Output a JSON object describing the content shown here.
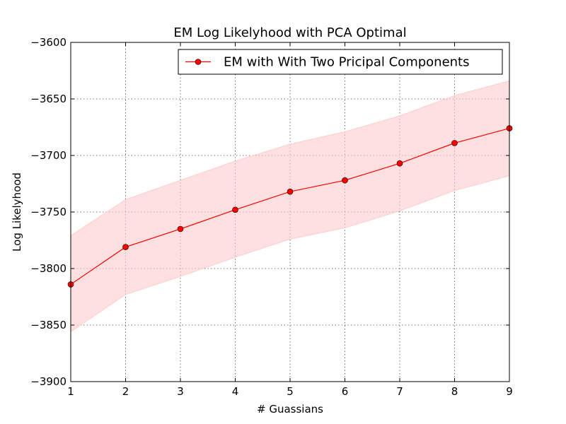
{
  "chart_data": {
    "type": "line",
    "title": "EM Log Likelyhood with PCA Optimal",
    "xlabel": "# Guassians",
    "ylabel": "Log Likelyhood",
    "xlim": [
      1,
      9
    ],
    "ylim": [
      -3900,
      -3600
    ],
    "grid": true,
    "legend_placement": "top-right",
    "x": [
      1,
      2,
      3,
      4,
      5,
      6,
      7,
      8,
      9
    ],
    "xticks": [
      "1",
      "2",
      "3",
      "4",
      "5",
      "6",
      "7",
      "8",
      "9"
    ],
    "yticks": [
      "−3900",
      "−3850",
      "−3800",
      "−3750",
      "−3700",
      "−3650",
      "−3600"
    ],
    "series": [
      {
        "name": "EM with With Two Pricipal Components",
        "color": "#ff0000",
        "marker": "circle",
        "values": [
          -3814,
          -3781,
          -3765,
          -3748,
          -3732,
          -3722,
          -3707,
          -3689,
          -3676
        ],
        "band_upper": [
          -3771,
          -3739,
          -3722,
          -3705,
          -3690,
          -3679,
          -3665,
          -3647,
          -3634
        ],
        "band_lower": [
          -3856,
          -3823,
          -3807,
          -3790,
          -3774,
          -3764,
          -3749,
          -3731,
          -3718
        ],
        "band_color": "#ffcccc"
      }
    ]
  }
}
